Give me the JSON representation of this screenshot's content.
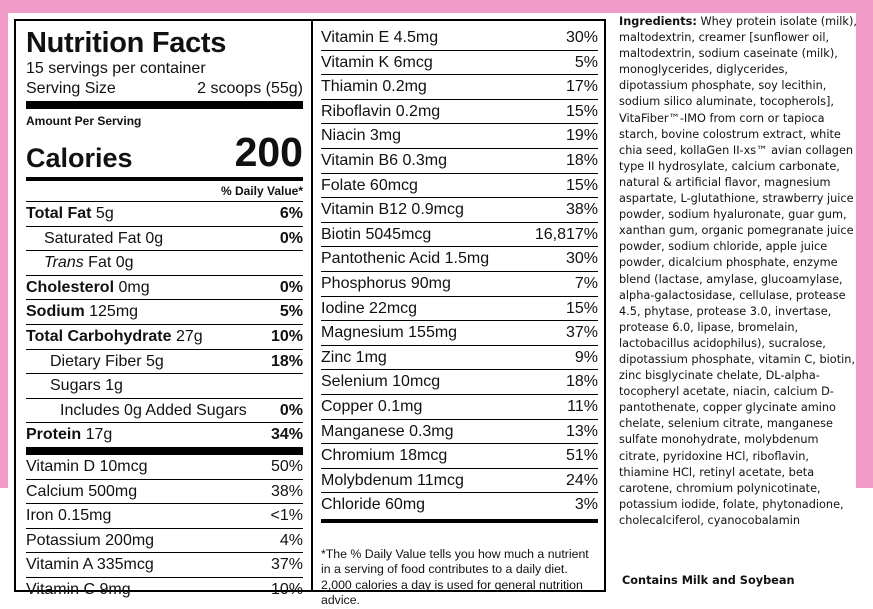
{
  "nutrition": {
    "title": "Nutrition Facts",
    "servings_per_container": "15 servings per container",
    "serving_size_label": "Serving Size",
    "serving_size_value": "2 scoops (55g)",
    "amount_per_serving": "Amount Per Serving",
    "calories_label": "Calories",
    "calories_value": "200",
    "daily_value_header": "% Daily Value*",
    "rows": [
      {
        "label_bold": "Total Fat",
        "label": " 5g",
        "dv": "6%"
      },
      {
        "label_bold": "",
        "label": "Saturated Fat 0g",
        "dv": "0%"
      },
      {
        "label_italic": "Trans",
        "label": " Fat 0g",
        "dv": ""
      },
      {
        "label_bold": "Cholesterol",
        "label": " 0mg",
        "dv": "0%"
      },
      {
        "label_bold": "Sodium",
        "label": " 125mg",
        "dv": "5%"
      },
      {
        "label_bold": "Total Carbohydrate",
        "label": " 27g",
        "dv": "10%"
      },
      {
        "label_bold": "",
        "label": "Dietary Fiber 5g",
        "dv": "18%"
      },
      {
        "label_bold": "",
        "label": "Sugars 1g",
        "dv": ""
      },
      {
        "label_bold": "",
        "label": "Includes 0g Added Sugars",
        "dv": "0%"
      },
      {
        "label_bold": "Protein",
        "label": " 17g",
        "dv": "34%"
      }
    ],
    "vitamins_left": [
      {
        "name": "Vitamin D 10mcg",
        "dv": "50%"
      },
      {
        "name": "Calcium 500mg",
        "dv": "38%"
      },
      {
        "name": "Iron 0.15mg",
        "dv": "<1%"
      },
      {
        "name": "Potassium 200mg",
        "dv": "4%"
      },
      {
        "name": "Vitamin A 335mcg",
        "dv": "37%"
      },
      {
        "name": "Vitamin C 9mg",
        "dv": "10%"
      }
    ],
    "vitamins_right": [
      {
        "name": "Vitamin E 4.5mg",
        "dv": "30%"
      },
      {
        "name": "Vitamin K 6mcg",
        "dv": "5%"
      },
      {
        "name": "Thiamin 0.2mg",
        "dv": "17%"
      },
      {
        "name": "Riboflavin 0.2mg",
        "dv": "15%"
      },
      {
        "name": "Niacin 3mg",
        "dv": "19%"
      },
      {
        "name": "Vitamin B6 0.3mg",
        "dv": "18%"
      },
      {
        "name": "Folate 60mcg",
        "dv": "15%"
      },
      {
        "name": "Vitamin B12 0.9mcg",
        "dv": "38%"
      },
      {
        "name": "Biotin 5045mcg",
        "dv": "16,817%"
      },
      {
        "name": "Pantothenic Acid 1.5mg",
        "dv": "30%"
      },
      {
        "name": "Phosphorus 90mg",
        "dv": "7%"
      },
      {
        "name": "Iodine 22mcg",
        "dv": "15%"
      },
      {
        "name": "Magnesium 155mg",
        "dv": "37%"
      },
      {
        "name": "Zinc 1mg",
        "dv": "9%"
      },
      {
        "name": "Selenium 10mcg",
        "dv": "18%"
      },
      {
        "name": "Copper 0.1mg",
        "dv": "11%"
      },
      {
        "name": "Manganese 0.3mg",
        "dv": "13%"
      },
      {
        "name": "Chromium 18mcg",
        "dv": "51%"
      },
      {
        "name": "Molybdenum 11mcg",
        "dv": "24%"
      },
      {
        "name": "Chloride 60mg",
        "dv": "3%"
      }
    ],
    "footnote": "*The % Daily Value tells you how much a nutrient in a serving of food contributes to a daily diet. 2,000 calories a day is used for general nutrition advice."
  },
  "ingredients": {
    "label": "Ingredients:",
    "text": " Whey protein isolate (milk), maltodextrin, creamer [sunflower oil, maltodextrin, sodium caseinate (milk), monoglycerides, diglycerides, dipotassium phosphate, soy lecithin, sodium silico aluminate, tocopherols], VitaFiber™-IMO from corn or tapioca starch, bovine colostrum extract, white chia seed, kollaGen II-xs™ avian collagen type II hydrosylate, calcium carbonate, natural & artificial flavor, magnesium aspartate, L-glutathione, strawberry juice powder, sodium hyaluronate, guar gum, xanthan gum, organic pomegranate juice powder, sodium chloride, apple juice powder, dicalcium phosphate, enzyme blend (lactase, amylase, glucoamylase, alpha-galactosidase, cellulase, protease 4.5, phytase, protease 3.0, invertase, protease 6.0, lipase, bromelain, lactobacillus acidophilus), sucralose, dipotassium phosphate, vitamin C, biotin, zinc bisglycinate chelate, DL-alpha-tocopheryl acetate, niacin, calcium D-pantothenate, copper glycinate amino chelate, selenium citrate, manganese sulfate monohydrate, molybdenum citrate, pyridoxine HCl, riboflavin, thiamine HCl, retinyl acetate, beta carotene, chromium polynicotinate, potassium iodide, folate, phytonadione, cholecalciferol, cyanocobalamin",
    "contains": "Contains Milk and Soybean"
  },
  "colors": {
    "background_band": "#f19ac7",
    "ink": "#111111"
  }
}
